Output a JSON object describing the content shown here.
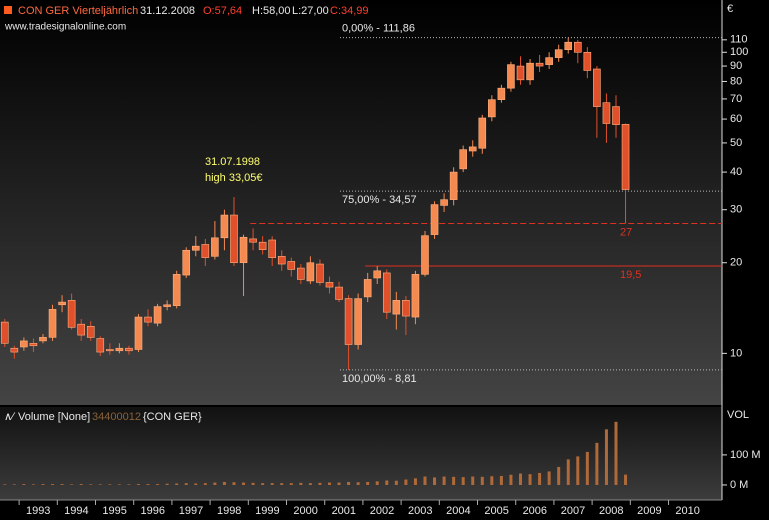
{
  "chart_data": {
    "type": "candlestick",
    "title": "CON GER Vierteljährlich",
    "date": "31.12.2008",
    "ohlc_labels": [
      "O:57,64",
      "H:58,00",
      "L:27,00",
      "C:34,99"
    ],
    "source": "www.tradesignalonline.com",
    "unit": "€",
    "log": true,
    "up_color": "#f58a50",
    "down_color": "#e0502a",
    "x": [
      1992.625,
      1992.875,
      1993.125,
      1993.375,
      1993.625,
      1993.875,
      1994.125,
      1994.375,
      1994.625,
      1994.875,
      1995.125,
      1995.375,
      1995.625,
      1995.875,
      1996.125,
      1996.375,
      1996.625,
      1996.875,
      1997.125,
      1997.375,
      1997.625,
      1997.875,
      1998.125,
      1998.375,
      1998.625,
      1998.875,
      1999.125,
      1999.375,
      1999.625,
      1999.875,
      2000.125,
      2000.375,
      2000.625,
      2000.875,
      2001.125,
      2001.375,
      2001.625,
      2001.875,
      2002.125,
      2002.375,
      2002.625,
      2002.875,
      2003.125,
      2003.375,
      2003.625,
      2003.875,
      2004.125,
      2004.375,
      2004.625,
      2004.875,
      2005.125,
      2005.375,
      2005.625,
      2005.875,
      2006.125,
      2006.375,
      2006.625,
      2006.875,
      2007.125,
      2007.375,
      2007.625,
      2007.875,
      2008.125,
      2008.375,
      2008.625,
      2008.875
    ],
    "open": [
      12.7,
      10.4,
      10.5,
      10.8,
      11.0,
      11.3,
      14.5,
      15.0,
      12.5,
      12.3,
      11.2,
      10.3,
      10.2,
      10.4,
      10.3,
      13.2,
      12.6,
      14.3,
      14.4,
      18.2,
      22.0,
      23,
      21,
      24.2,
      28.8,
      20,
      24,
      23.4,
      23.8,
      21,
      20.2,
      19.2,
      17.4,
      19.8,
      17.2,
      16.6,
      15.2,
      10.7,
      15.4,
      17.8,
      18.5,
      13.5,
      15,
      13.2,
      18.3,
      24.8,
      31,
      32.4,
      41,
      47,
      48,
      61,
      69.6,
      76,
      90,
      81,
      92,
      91,
      96,
      102,
      108,
      100,
      88,
      68,
      66,
      57.64
    ],
    "high": [
      13,
      10.6,
      11.3,
      11.2,
      11.6,
      14.5,
      15.6,
      15.8,
      13,
      12.8,
      11.4,
      10.8,
      10.8,
      10.6,
      13.5,
      14,
      14.6,
      15.0,
      18.8,
      22.5,
      24.5,
      24,
      27.5,
      30,
      33.05,
      24.8,
      26,
      24.5,
      24.5,
      22,
      20.8,
      19.8,
      21,
      20.5,
      18,
      17.3,
      15.6,
      15.8,
      18.5,
      19.5,
      19,
      16,
      15.5,
      18.8,
      25.5,
      32,
      34,
      41.5,
      49,
      51,
      62,
      72,
      78,
      93,
      97,
      95,
      98,
      100,
      106,
      111.86,
      110,
      104,
      90,
      73,
      72,
      58
    ],
    "low": [
      10.5,
      9.6,
      10.2,
      10.1,
      10.8,
      11.0,
      13.7,
      12.0,
      11,
      11.0,
      9.8,
      9.9,
      10.0,
      9.9,
      10.1,
      12.3,
      12.3,
      13.9,
      14.1,
      17.8,
      21.0,
      19.5,
      20.5,
      22,
      19.5,
      15.5,
      22,
      21.3,
      19.5,
      18.8,
      18,
      17,
      17,
      16.8,
      15.8,
      14.8,
      8.81,
      10.3,
      14.8,
      17,
      13,
      12,
      11.5,
      12.5,
      18,
      24,
      29.5,
      31,
      40,
      45,
      46,
      59,
      68,
      74,
      78,
      78,
      86,
      88,
      93,
      99,
      92,
      82,
      52,
      50,
      52,
      27
    ],
    "close": [
      10.8,
      10.1,
      11.0,
      10.6,
      11.3,
      14.0,
      14.8,
      12.2,
      11.5,
      11.3,
      10.1,
      10.2,
      10.4,
      10.2,
      13.2,
      12.7,
      14.3,
      14.5,
      18.3,
      22.0,
      22.7,
      20.8,
      24.2,
      28.8,
      20.0,
      24.3,
      23.4,
      22.1,
      20.8,
      19.8,
      19,
      17.6,
      20,
      17.2,
      16.6,
      15.1,
      10.7,
      15.2,
      17.6,
      18.8,
      13.7,
      15,
      13.3,
      18.3,
      24.6,
      31.2,
      32.4,
      40,
      47.5,
      48.5,
      60.5,
      69.6,
      76,
      91,
      81,
      92,
      90,
      96,
      102,
      108,
      100,
      87,
      66,
      58,
      57.5,
      34.99
    ],
    "xlim": [
      1992.5,
      2011.4
    ],
    "xticks": [
      1993,
      1994,
      1995,
      1996,
      1997,
      1998,
      1999,
      2000,
      2001,
      2002,
      2003,
      2004,
      2005,
      2006,
      2007,
      2008,
      2009,
      2010
    ],
    "ylim": [
      7,
      128
    ],
    "yticks": [
      10,
      20,
      30,
      40,
      50,
      60,
      70,
      80,
      90,
      100,
      110
    ],
    "levels": [
      {
        "value": 111.86,
        "label": "0,00% - 111,86",
        "from": 2001.4
      },
      {
        "value": 34.57,
        "label": "75,00% - 34,57",
        "from": 2001.4
      },
      {
        "value": 8.81,
        "label": "100,00% - 8,81",
        "from": 2001.4
      }
    ],
    "lines": [
      {
        "value": 27,
        "label": "27",
        "from": 1999.05,
        "color": "#e03020",
        "dashed": true
      },
      {
        "value": 19.5,
        "label": "19,5",
        "from": 2002.06,
        "color": "#e03020",
        "dashed": false
      }
    ],
    "annotation": [
      "31.07.1998",
      "high 33,05€"
    ],
    "volume": {
      "legend": "Volume [None]",
      "symbol": "{CON GER}",
      "axis_label": "VOL",
      "color": "#b06a3a",
      "values": [
        2000000,
        2000000,
        3000000,
        2000000,
        3000000,
        3000000,
        3000000,
        2000000,
        3000000,
        2000000,
        2000000,
        2000000,
        2000000,
        2000000,
        3000000,
        3000000,
        3000000,
        4000000,
        5000000,
        6000000,
        5000000,
        6000000,
        8000000,
        10000000,
        9000000,
        8000000,
        7000000,
        6000000,
        6000000,
        6000000,
        6000000,
        7000000,
        6000000,
        7000000,
        8000000,
        8000000,
        10000000,
        9000000,
        10000000,
        12000000,
        15000000,
        14000000,
        18000000,
        22000000,
        28000000,
        25000000,
        28000000,
        27000000,
        26000000,
        28000000,
        27000000,
        29000000,
        30000000,
        34000000,
        38000000,
        36000000,
        40000000,
        45000000,
        60000000,
        85000000,
        95000000,
        110000000,
        140000000,
        185000000,
        210000000,
        34400012
      ],
      "ylim": [
        -50000000,
        256000000
      ],
      "yticks": [
        {
          "value": 0,
          "label": "0 M"
        },
        {
          "value": 100000000,
          "label": "100 M"
        }
      ]
    }
  }
}
